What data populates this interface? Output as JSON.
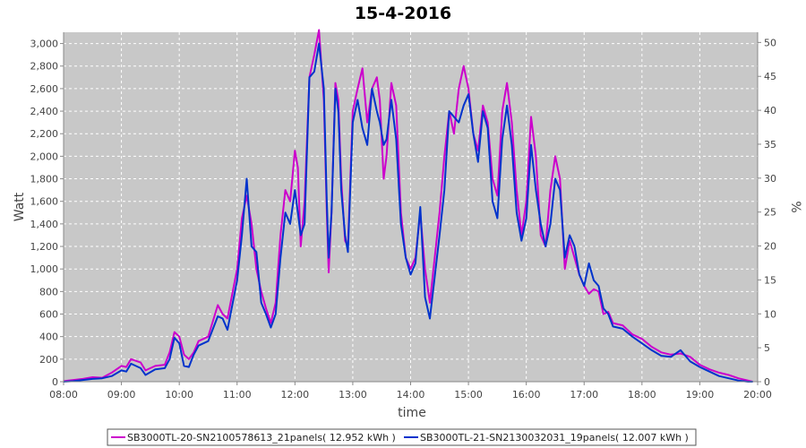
{
  "chart_data": {
    "type": "line",
    "title": "15-4-2016",
    "xlabel": "time",
    "ylabel": "Watt",
    "y2label": "%",
    "xlim": [
      "08:00",
      "20:00"
    ],
    "ylim": [
      0,
      3100
    ],
    "y2lim": [
      0,
      51.5
    ],
    "grid": true,
    "legend_position": "bottom",
    "x_ticks": [
      "08:00",
      "09:00",
      "10:00",
      "11:00",
      "12:00",
      "13:00",
      "14:00",
      "15:00",
      "16:00",
      "17:00",
      "18:00",
      "19:00",
      "20:00"
    ],
    "y_ticks": [
      "0",
      "200",
      "400",
      "600",
      "800",
      "1,000",
      "1,200",
      "1,400",
      "1,600",
      "1,800",
      "2,000",
      "2,200",
      "2,400",
      "2,600",
      "2,800",
      "3,000"
    ],
    "y2_ticks": [
      "0",
      "5",
      "10",
      "15",
      "20",
      "25",
      "30",
      "35",
      "40",
      "45",
      "50"
    ],
    "series": [
      {
        "name": "SB3000TL-20-SN2100578613_21panels( 12.952 kWh )",
        "color": "#cc00cc",
        "points": [
          [
            "08:00",
            5
          ],
          [
            "08:10",
            15
          ],
          [
            "08:20",
            25
          ],
          [
            "08:30",
            40
          ],
          [
            "08:40",
            35
          ],
          [
            "08:50",
            80
          ],
          [
            "09:00",
            140
          ],
          [
            "09:05",
            130
          ],
          [
            "09:10",
            200
          ],
          [
            "09:20",
            170
          ],
          [
            "09:25",
            100
          ],
          [
            "09:35",
            140
          ],
          [
            "09:45",
            150
          ],
          [
            "09:50",
            260
          ],
          [
            "09:55",
            440
          ],
          [
            "10:00",
            400
          ],
          [
            "10:05",
            240
          ],
          [
            "10:10",
            200
          ],
          [
            "10:15",
            260
          ],
          [
            "10:20",
            360
          ],
          [
            "10:30",
            400
          ],
          [
            "10:40",
            680
          ],
          [
            "10:45",
            600
          ],
          [
            "10:50",
            560
          ],
          [
            "11:00",
            1000
          ],
          [
            "11:05",
            1450
          ],
          [
            "11:10",
            1650
          ],
          [
            "11:15",
            1400
          ],
          [
            "11:20",
            1000
          ],
          [
            "11:25",
            800
          ],
          [
            "11:30",
            650
          ],
          [
            "11:35",
            520
          ],
          [
            "11:40",
            700
          ],
          [
            "11:45",
            1300
          ],
          [
            "11:50",
            1700
          ],
          [
            "11:55",
            1600
          ],
          [
            "12:00",
            2050
          ],
          [
            "12:03",
            1900
          ],
          [
            "12:06",
            1200
          ],
          [
            "12:10",
            1600
          ],
          [
            "12:15",
            2700
          ],
          [
            "12:20",
            2900
          ],
          [
            "12:25",
            3120
          ],
          [
            "12:30",
            2500
          ],
          [
            "12:33",
            1500
          ],
          [
            "12:35",
            970
          ],
          [
            "12:38",
            1500
          ],
          [
            "12:42",
            2650
          ],
          [
            "12:45",
            2500
          ],
          [
            "12:48",
            1800
          ],
          [
            "12:52",
            1250
          ],
          [
            "12:55",
            1200
          ],
          [
            "13:00",
            2400
          ],
          [
            "13:05",
            2600
          ],
          [
            "13:10",
            2780
          ],
          [
            "13:15",
            2300
          ],
          [
            "13:20",
            2600
          ],
          [
            "13:25",
            2700
          ],
          [
            "13:28",
            2500
          ],
          [
            "13:32",
            1800
          ],
          [
            "13:35",
            2000
          ],
          [
            "13:40",
            2650
          ],
          [
            "13:45",
            2450
          ],
          [
            "13:50",
            1500
          ],
          [
            "13:55",
            1100
          ],
          [
            "14:00",
            1000
          ],
          [
            "14:05",
            1100
          ],
          [
            "14:10",
            1500
          ],
          [
            "14:15",
            1000
          ],
          [
            "14:20",
            700
          ],
          [
            "14:30",
            1500
          ],
          [
            "14:35",
            2000
          ],
          [
            "14:40",
            2400
          ],
          [
            "14:45",
            2200
          ],
          [
            "14:50",
            2600
          ],
          [
            "14:55",
            2800
          ],
          [
            "15:00",
            2600
          ],
          [
            "15:05",
            2200
          ],
          [
            "15:10",
            2050
          ],
          [
            "15:15",
            2450
          ],
          [
            "15:20",
            2300
          ],
          [
            "15:25",
            1800
          ],
          [
            "15:30",
            1650
          ],
          [
            "15:35",
            2400
          ],
          [
            "15:40",
            2650
          ],
          [
            "15:45",
            2300
          ],
          [
            "15:50",
            1700
          ],
          [
            "15:55",
            1300
          ],
          [
            "16:00",
            1600
          ],
          [
            "16:05",
            2350
          ],
          [
            "16:10",
            2000
          ],
          [
            "16:15",
            1300
          ],
          [
            "16:20",
            1200
          ],
          [
            "16:25",
            1700
          ],
          [
            "16:30",
            2000
          ],
          [
            "16:35",
            1800
          ],
          [
            "16:40",
            1000
          ],
          [
            "16:45",
            1250
          ],
          [
            "16:50",
            1100
          ],
          [
            "16:55",
            950
          ],
          [
            "17:00",
            850
          ],
          [
            "17:05",
            780
          ],
          [
            "17:10",
            820
          ],
          [
            "17:15",
            800
          ],
          [
            "17:20",
            600
          ],
          [
            "17:25",
            620
          ],
          [
            "17:30",
            520
          ],
          [
            "17:40",
            500
          ],
          [
            "17:50",
            420
          ],
          [
            "18:00",
            380
          ],
          [
            "18:10",
            310
          ],
          [
            "18:20",
            260
          ],
          [
            "18:30",
            240
          ],
          [
            "18:40",
            250
          ],
          [
            "18:50",
            220
          ],
          [
            "19:00",
            150
          ],
          [
            "19:10",
            110
          ],
          [
            "19:20",
            80
          ],
          [
            "19:30",
            60
          ],
          [
            "19:40",
            30
          ],
          [
            "19:50",
            10
          ],
          [
            "19:55",
            0
          ]
        ]
      },
      {
        "name": "SB3000TL-21-SN2130032031_19panels( 12.007 kWh )",
        "color": "#0033cc",
        "points": [
          [
            "08:00",
            0
          ],
          [
            "08:10",
            5
          ],
          [
            "08:20",
            15
          ],
          [
            "08:30",
            25
          ],
          [
            "08:40",
            30
          ],
          [
            "08:50",
            50
          ],
          [
            "09:00",
            100
          ],
          [
            "09:05",
            90
          ],
          [
            "09:10",
            160
          ],
          [
            "09:20",
            120
          ],
          [
            "09:25",
            60
          ],
          [
            "09:35",
            110
          ],
          [
            "09:45",
            120
          ],
          [
            "09:50",
            200
          ],
          [
            "09:55",
            390
          ],
          [
            "10:00",
            340
          ],
          [
            "10:05",
            140
          ],
          [
            "10:10",
            130
          ],
          [
            "10:15",
            240
          ],
          [
            "10:20",
            320
          ],
          [
            "10:30",
            360
          ],
          [
            "10:40",
            580
          ],
          [
            "10:45",
            560
          ],
          [
            "10:50",
            460
          ],
          [
            "11:00",
            900
          ],
          [
            "11:05",
            1300
          ],
          [
            "11:10",
            1800
          ],
          [
            "11:15",
            1200
          ],
          [
            "11:20",
            1150
          ],
          [
            "11:25",
            700
          ],
          [
            "11:30",
            600
          ],
          [
            "11:35",
            480
          ],
          [
            "11:40",
            600
          ],
          [
            "11:45",
            1100
          ],
          [
            "11:50",
            1500
          ],
          [
            "11:55",
            1400
          ],
          [
            "12:00",
            1700
          ],
          [
            "12:03",
            1500
          ],
          [
            "12:06",
            1300
          ],
          [
            "12:10",
            1400
          ],
          [
            "12:15",
            2700
          ],
          [
            "12:20",
            2750
          ],
          [
            "12:25",
            3000
          ],
          [
            "12:30",
            2600
          ],
          [
            "12:33",
            1600
          ],
          [
            "12:35",
            1100
          ],
          [
            "12:38",
            1500
          ],
          [
            "12:42",
            2600
          ],
          [
            "12:45",
            2400
          ],
          [
            "12:48",
            1700
          ],
          [
            "12:52",
            1300
          ],
          [
            "12:55",
            1150
          ],
          [
            "13:00",
            2300
          ],
          [
            "13:05",
            2500
          ],
          [
            "13:10",
            2250
          ],
          [
            "13:15",
            2100
          ],
          [
            "13:20",
            2600
          ],
          [
            "13:25",
            2400
          ],
          [
            "13:28",
            2300
          ],
          [
            "13:32",
            2100
          ],
          [
            "13:35",
            2150
          ],
          [
            "13:40",
            2500
          ],
          [
            "13:45",
            2150
          ],
          [
            "13:50",
            1400
          ],
          [
            "13:55",
            1100
          ],
          [
            "14:00",
            950
          ],
          [
            "14:05",
            1050
          ],
          [
            "14:10",
            1550
          ],
          [
            "14:15",
            750
          ],
          [
            "14:20",
            560
          ],
          [
            "14:30",
            1300
          ],
          [
            "14:35",
            1700
          ],
          [
            "14:40",
            2400
          ],
          [
            "14:45",
            2350
          ],
          [
            "14:50",
            2300
          ],
          [
            "14:55",
            2450
          ],
          [
            "15:00",
            2550
          ],
          [
            "15:05",
            2200
          ],
          [
            "15:10",
            1950
          ],
          [
            "15:15",
            2400
          ],
          [
            "15:20",
            2250
          ],
          [
            "15:25",
            1600
          ],
          [
            "15:30",
            1450
          ],
          [
            "15:35",
            2150
          ],
          [
            "15:40",
            2450
          ],
          [
            "15:45",
            2100
          ],
          [
            "15:50",
            1500
          ],
          [
            "15:55",
            1250
          ],
          [
            "16:00",
            1450
          ],
          [
            "16:05",
            2100
          ],
          [
            "16:10",
            1700
          ],
          [
            "16:15",
            1400
          ],
          [
            "16:20",
            1200
          ],
          [
            "16:25",
            1400
          ],
          [
            "16:30",
            1800
          ],
          [
            "16:35",
            1700
          ],
          [
            "16:40",
            1100
          ],
          [
            "16:45",
            1300
          ],
          [
            "16:50",
            1200
          ],
          [
            "16:55",
            950
          ],
          [
            "17:00",
            850
          ],
          [
            "17:05",
            1050
          ],
          [
            "17:10",
            900
          ],
          [
            "17:15",
            850
          ],
          [
            "17:20",
            650
          ],
          [
            "17:25",
            600
          ],
          [
            "17:30",
            490
          ],
          [
            "17:40",
            470
          ],
          [
            "17:50",
            400
          ],
          [
            "18:00",
            340
          ],
          [
            "18:10",
            280
          ],
          [
            "18:20",
            230
          ],
          [
            "18:30",
            220
          ],
          [
            "18:40",
            280
          ],
          [
            "18:50",
            180
          ],
          [
            "19:00",
            130
          ],
          [
            "19:10",
            90
          ],
          [
            "19:20",
            50
          ],
          [
            "19:30",
            30
          ],
          [
            "19:40",
            10
          ],
          [
            "19:50",
            0
          ],
          [
            "19:55",
            0
          ]
        ]
      }
    ]
  }
}
